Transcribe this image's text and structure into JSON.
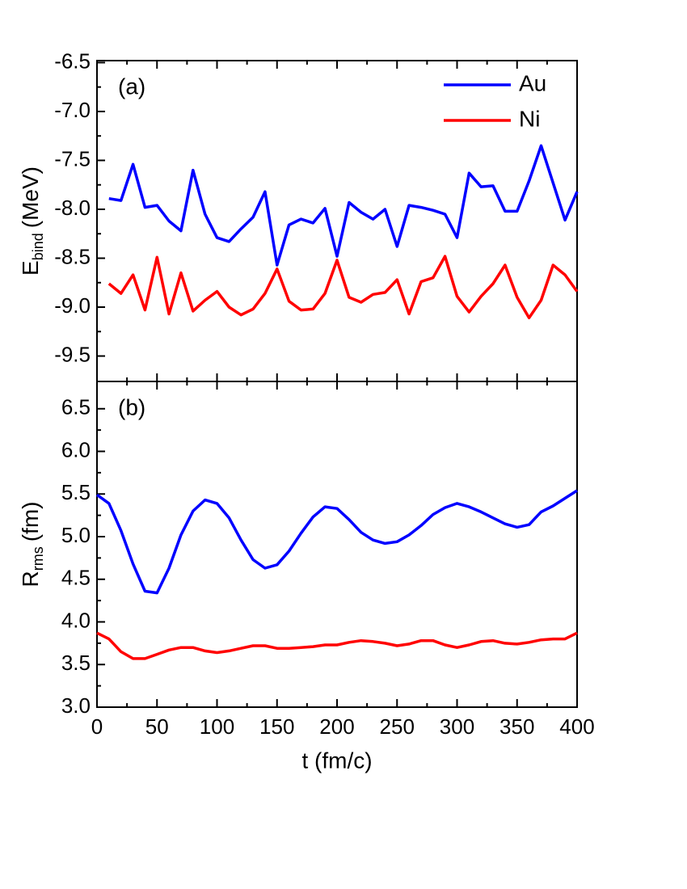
{
  "chart_data": [
    {
      "type": "line",
      "ylabel": "E",
      "ylabel_sub": "bind",
      "ylabel_unit": "(MeV)",
      "annotation": "(a)",
      "legend": "upper right",
      "xlim": [
        0,
        400
      ],
      "ylim": [
        -9.76,
        -6.48
      ],
      "yticks": [
        -9.5,
        -9.0,
        -8.5,
        -8.0,
        -7.5,
        -7.0,
        -6.5
      ],
      "ytick_labels": [
        "-9.5",
        "-9.0",
        "-8.5",
        "-8.0",
        "-7.5",
        "-7.0",
        "-6.5"
      ],
      "x": [
        10,
        20,
        30,
        40,
        50,
        60,
        70,
        80,
        90,
        100,
        110,
        120,
        130,
        140,
        150,
        160,
        170,
        180,
        190,
        200,
        210,
        220,
        230,
        240,
        250,
        260,
        270,
        280,
        290,
        300,
        310,
        320,
        330,
        340,
        350,
        360,
        370,
        380,
        390,
        400
      ],
      "series": [
        {
          "name": "Au",
          "color": "#0000ff",
          "values": [
            -7.89,
            -7.91,
            -7.54,
            -7.98,
            -7.96,
            -8.12,
            -8.22,
            -7.6,
            -8.05,
            -8.29,
            -8.33,
            -8.2,
            -8.08,
            -7.82,
            -8.57,
            -8.16,
            -8.1,
            -8.14,
            -7.99,
            -8.48,
            -7.93,
            -8.03,
            -8.1,
            -8.0,
            -8.38,
            -7.96,
            -7.98,
            -8.01,
            -8.05,
            -8.29,
            -7.63,
            -7.77,
            -7.76,
            -8.02,
            -8.02,
            -7.71,
            -7.35,
            -7.73,
            -8.11,
            -7.82
          ]
        },
        {
          "name": "Ni",
          "color": "#ff0000",
          "values": [
            -8.76,
            -8.86,
            -8.67,
            -9.03,
            -8.49,
            -9.07,
            -8.65,
            -9.04,
            -8.93,
            -8.84,
            -9.0,
            -9.08,
            -9.02,
            -8.86,
            -8.61,
            -8.94,
            -9.03,
            -9.02,
            -8.86,
            -8.52,
            -8.9,
            -8.95,
            -8.87,
            -8.85,
            -8.72,
            -9.07,
            -8.74,
            -8.7,
            -8.48,
            -8.89,
            -9.05,
            -8.89,
            -8.76,
            -8.57,
            -8.9,
            -9.11,
            -8.93,
            -8.57,
            -8.67,
            -8.84
          ]
        }
      ]
    },
    {
      "type": "line",
      "ylabel": "R",
      "ylabel_sub": "rms",
      "ylabel_unit": "(fm)",
      "xlabel": "t (fm/c)",
      "annotation": "(b)",
      "xlim": [
        0,
        400
      ],
      "xticks": [
        0,
        50,
        100,
        150,
        200,
        250,
        300,
        350,
        400
      ],
      "ylim": [
        3.0,
        6.82
      ],
      "yticks": [
        3.0,
        3.5,
        4.0,
        4.5,
        5.0,
        5.5,
        6.0,
        6.5
      ],
      "ytick_labels": [
        "3.0",
        "3.5",
        "4.0",
        "4.5",
        "5.0",
        "5.5",
        "6.0",
        "6.5"
      ],
      "x": [
        0,
        10,
        20,
        30,
        40,
        50,
        60,
        70,
        80,
        90,
        100,
        110,
        120,
        130,
        140,
        150,
        160,
        170,
        180,
        190,
        200,
        210,
        220,
        230,
        240,
        250,
        260,
        270,
        280,
        290,
        300,
        310,
        320,
        330,
        340,
        350,
        360,
        370,
        380,
        390,
        400
      ],
      "series": [
        {
          "name": "Au",
          "color": "#0000ff",
          "values": [
            5.49,
            5.39,
            5.07,
            4.68,
            4.36,
            4.34,
            4.63,
            5.02,
            5.3,
            5.43,
            5.39,
            5.22,
            4.96,
            4.73,
            4.63,
            4.67,
            4.83,
            5.04,
            5.23,
            5.35,
            5.33,
            5.2,
            5.05,
            4.96,
            4.92,
            4.94,
            5.02,
            5.13,
            5.26,
            5.34,
            5.39,
            5.35,
            5.29,
            5.22,
            5.15,
            5.11,
            5.14,
            5.29,
            5.36,
            5.45,
            5.54
          ]
        },
        {
          "name": "Ni",
          "color": "#ff0000",
          "values": [
            3.87,
            3.8,
            3.65,
            3.57,
            3.57,
            3.62,
            3.67,
            3.7,
            3.7,
            3.66,
            3.64,
            3.66,
            3.69,
            3.72,
            3.72,
            3.69,
            3.69,
            3.7,
            3.71,
            3.73,
            3.73,
            3.76,
            3.78,
            3.77,
            3.75,
            3.72,
            3.74,
            3.78,
            3.78,
            3.73,
            3.7,
            3.73,
            3.77,
            3.78,
            3.75,
            3.74,
            3.76,
            3.79,
            3.8,
            3.8,
            3.87
          ]
        }
      ]
    }
  ]
}
